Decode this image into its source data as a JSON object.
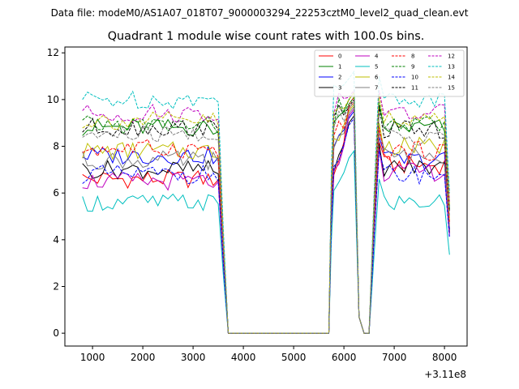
{
  "figure": {
    "suptitle": "Data file: modeM0/AS1A07_018T07_9000003294_22253cztM0_level2_quad_clean.evt"
  },
  "chart_data": {
    "type": "line",
    "title": "Quadrant 1 module wise count rates with 100.0s bins.",
    "xlabel": "",
    "ylabel": "",
    "x_offset_label": "+3.11e8",
    "xlim": [
      450,
      8450
    ],
    "ylim": [
      -0.55,
      12.25
    ],
    "x_ticks": [
      1000,
      2000,
      3000,
      4000,
      5000,
      6000,
      7000,
      8000
    ],
    "y_ticks": [
      0,
      2,
      4,
      6,
      8,
      10,
      12
    ],
    "grid": false,
    "legend_position": "top-right",
    "x": [
      800,
      900,
      1000,
      1100,
      1200,
      1300,
      1400,
      1500,
      1600,
      1700,
      1800,
      1900,
      2000,
      2100,
      2200,
      2300,
      2400,
      2500,
      2600,
      2700,
      2800,
      2900,
      3000,
      3100,
      3200,
      3300,
      3400,
      3500,
      3600,
      3700,
      3800,
      3900,
      4000,
      4100,
      4200,
      4300,
      4400,
      4500,
      4600,
      4700,
      4800,
      4900,
      5000,
      5100,
      5200,
      5300,
      5400,
      5500,
      5600,
      5700,
      5750,
      5800,
      5900,
      6000,
      6100,
      6200,
      6300,
      6400,
      6500,
      6600,
      6700,
      6800,
      6900,
      7000,
      7100,
      7200,
      7300,
      7400,
      7500,
      7600,
      7700,
      7800,
      7900,
      8000,
      8100
    ],
    "series": [
      {
        "name": "0",
        "color": "#ff0000",
        "dash": "solid",
        "base": 6.6,
        "peak": 10.1,
        "post": 7.2,
        "seed": 1
      },
      {
        "name": "1",
        "color": "#008000",
        "dash": "solid",
        "base": 8.8,
        "peak": 10.3,
        "post": 8.8,
        "seed": 2
      },
      {
        "name": "2",
        "color": "#0000ff",
        "dash": "solid",
        "base": 7.6,
        "peak": 9.5,
        "post": 7.4,
        "seed": 3
      },
      {
        "name": "3",
        "color": "#000000",
        "dash": "solid",
        "base": 7.0,
        "peak": 9.3,
        "post": 7.1,
        "seed": 4
      },
      {
        "name": "4",
        "color": "#bf00bf",
        "dash": "solid",
        "base": 6.5,
        "peak": 9.6,
        "post": 6.9,
        "seed": 5
      },
      {
        "name": "5",
        "color": "#00bfbf",
        "dash": "solid",
        "base": 5.6,
        "peak": 7.8,
        "post": 5.6,
        "seed": 6
      },
      {
        "name": "6",
        "color": "#bfbf00",
        "dash": "solid",
        "base": 7.8,
        "peak": 9.8,
        "post": 8.0,
        "seed": 7
      },
      {
        "name": "7",
        "color": "#808080",
        "dash": "solid",
        "base": 7.4,
        "peak": 9.7,
        "post": 7.6,
        "seed": 8
      },
      {
        "name": "8",
        "color": "#ff0000",
        "dash": "dashed",
        "base": 7.9,
        "peak": 9.9,
        "post": 7.8,
        "seed": 9
      },
      {
        "name": "9",
        "color": "#008000",
        "dash": "dashed",
        "base": 8.9,
        "peak": 10.1,
        "post": 8.9,
        "seed": 10
      },
      {
        "name": "10",
        "color": "#0000ff",
        "dash": "dashed",
        "base": 6.8,
        "peak": 9.2,
        "post": 6.8,
        "seed": 11
      },
      {
        "name": "11",
        "color": "#000000",
        "dash": "dashed",
        "base": 8.8,
        "peak": 10.0,
        "post": 8.7,
        "seed": 12
      },
      {
        "name": "12",
        "color": "#bf00bf",
        "dash": "dashed",
        "base": 9.4,
        "peak": 10.4,
        "post": 9.4,
        "seed": 13
      },
      {
        "name": "13",
        "color": "#00bfbf",
        "dash": "dashed",
        "base": 10.0,
        "peak": 11.2,
        "post": 10.0,
        "seed": 14
      },
      {
        "name": "14",
        "color": "#bfbf00",
        "dash": "dashed",
        "base": 9.1,
        "peak": 10.3,
        "post": 9.2,
        "seed": 15
      },
      {
        "name": "15",
        "color": "#808080",
        "dash": "dashed",
        "base": 8.5,
        "peak": 9.9,
        "post": 8.4,
        "seed": 16
      }
    ]
  }
}
